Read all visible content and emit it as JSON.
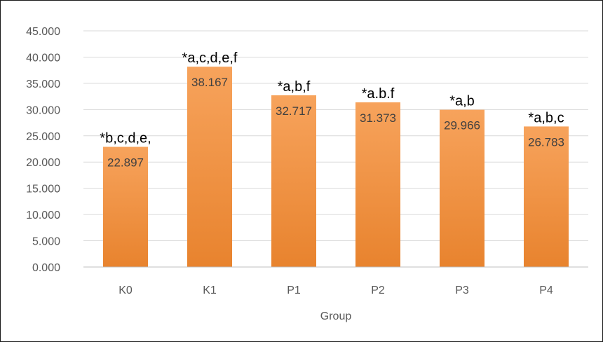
{
  "chart_data": {
    "type": "bar",
    "title": "",
    "xlabel": "Group",
    "ylabel": "",
    "ylim": [
      0,
      45
    ],
    "yticks": [
      "0.000",
      "5.000",
      "10.000",
      "15.000",
      "20.000",
      "25.000",
      "30.000",
      "35.000",
      "40.000",
      "45.000"
    ],
    "categories": [
      "K0",
      "K1",
      "P1",
      "P2",
      "P3",
      "P4"
    ],
    "values": [
      22.897,
      38.167,
      32.717,
      31.373,
      29.966,
      26.783
    ],
    "value_labels": [
      "22.897",
      "38.167",
      "32.717",
      "31.373",
      "29.966",
      "26.783"
    ],
    "annotations": [
      "*b,c,d,e,",
      "*a,c,d,e,f",
      "*a,b,f",
      "*a.b.f",
      "*a,b",
      "*a,b,c"
    ],
    "grid": true,
    "legend": "none",
    "colors": {
      "bar_top": "#f7a35c",
      "bar_bottom": "#e8832e",
      "grid": "#d9d9d9"
    }
  }
}
